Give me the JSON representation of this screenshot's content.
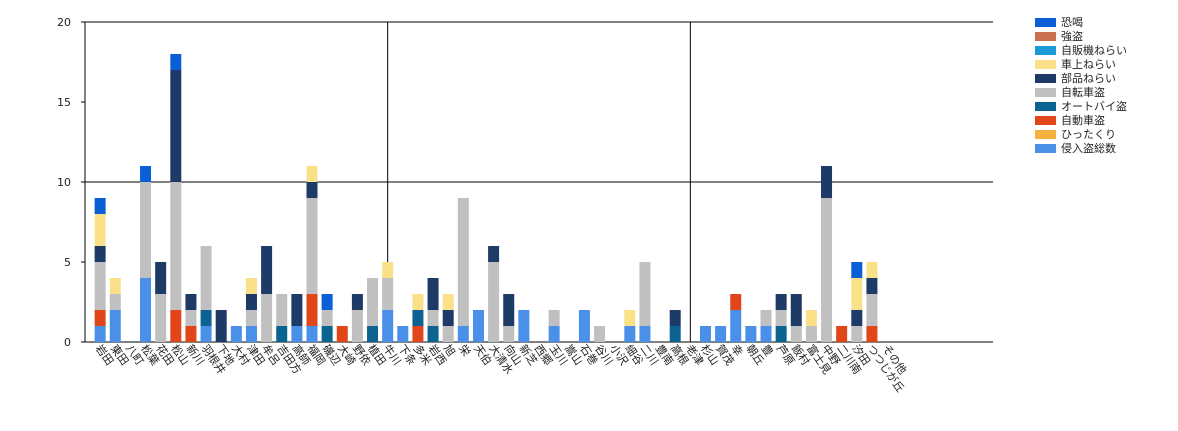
{
  "chart_data": {
    "type": "stacked_bar",
    "categories": [
      "岩田",
      "東田",
      "八町",
      "松葉",
      "花田",
      "松山",
      "新川",
      "羽根井",
      "下地",
      "大村",
      "津田",
      "牟呂",
      "吉田方",
      "高師",
      "福岡",
      "磯辺",
      "大崎",
      "野依",
      "植田",
      "牛川",
      "下条",
      "多米",
      "岩西",
      "旭",
      "栄",
      "天伯",
      "大清水",
      "向山",
      "新芝",
      "西郷",
      "玉川",
      "嵩山",
      "石巻",
      "谷川",
      "小沢",
      "細谷",
      "二川",
      "豊南",
      "高根",
      "老津",
      "杉山",
      "賀茂",
      "幸",
      "朝丘",
      "豊",
      "芦原",
      "飯村",
      "富士見",
      "中野",
      "二川南",
      "汐田",
      "つつじが丘",
      "その他"
    ],
    "series": [
      {
        "name": "恐喝",
        "color": "#0a5fd6",
        "values": [
          1,
          0,
          0,
          1,
          0,
          1,
          0,
          0,
          0,
          0,
          0,
          0,
          0,
          0,
          0,
          1,
          0,
          0,
          0,
          0,
          0,
          0,
          0,
          0,
          0,
          0,
          0,
          0,
          0,
          0,
          0,
          0,
          0,
          0,
          0,
          0,
          0,
          0,
          0,
          0,
          0,
          0,
          0,
          0,
          0,
          0,
          0,
          0,
          0,
          0,
          1,
          0,
          0
        ]
      },
      {
        "name": "強盗",
        "color": "#c8704f",
        "values": [
          0,
          0,
          0,
          0,
          0,
          0,
          0,
          0,
          0,
          0,
          0,
          0,
          0,
          0,
          0,
          0,
          0,
          0,
          0,
          0,
          0,
          0,
          0,
          0,
          0,
          0,
          0,
          0,
          0,
          0,
          0,
          0,
          0,
          0,
          0,
          0,
          0,
          0,
          0,
          0,
          0,
          0,
          0,
          0,
          0,
          0,
          0,
          0,
          0,
          0,
          0,
          0,
          0
        ]
      },
      {
        "name": "自販機ねらい",
        "color": "#1a9ad6",
        "values": [
          0,
          0,
          0,
          0,
          0,
          0,
          0,
          0,
          0,
          0,
          0,
          0,
          0,
          0,
          0,
          0,
          0,
          0,
          0,
          0,
          0,
          0,
          0,
          0,
          0,
          0,
          0,
          0,
          0,
          0,
          0,
          0,
          0,
          0,
          0,
          0,
          0,
          0,
          0,
          0,
          0,
          0,
          0,
          0,
          0,
          0,
          0,
          0,
          0,
          0,
          0,
          0,
          0
        ]
      },
      {
        "name": "車上ねらい",
        "color": "#fbe08a",
        "values": [
          2,
          1,
          0,
          0,
          0,
          0,
          0,
          0,
          0,
          0,
          1,
          0,
          0,
          0,
          1,
          0,
          0,
          0,
          0,
          1,
          0,
          1,
          0,
          1,
          0,
          0,
          0,
          0,
          0,
          0,
          0,
          0,
          0,
          0,
          0,
          1,
          0,
          0,
          0,
          0,
          0,
          0,
          0,
          0,
          0,
          0,
          0,
          1,
          0,
          0,
          2,
          1,
          0
        ]
      },
      {
        "name": "部品ねらい",
        "color": "#1e3a66",
        "values": [
          1,
          0,
          0,
          0,
          2,
          7,
          1,
          0,
          2,
          0,
          1,
          3,
          0,
          2,
          1,
          0,
          0,
          1,
          0,
          0,
          0,
          0,
          2,
          1,
          0,
          0,
          1,
          2,
          0,
          0,
          0,
          0,
          0,
          0,
          0,
          0,
          0,
          0,
          1,
          0,
          0,
          0,
          0,
          0,
          0,
          1,
          2,
          0,
          2,
          0,
          1,
          1,
          0
        ]
      },
      {
        "name": "自転車盗",
        "color": "#c0c0c0",
        "values": [
          3,
          1,
          0,
          6,
          3,
          8,
          1,
          4,
          0,
          0,
          1,
          3,
          2,
          0,
          6,
          1,
          0,
          2,
          3,
          2,
          0,
          0,
          1,
          1,
          8,
          0,
          5,
          1,
          0,
          0,
          1,
          0,
          0,
          1,
          0,
          0,
          4,
          0,
          0,
          0,
          0,
          0,
          0,
          0,
          1,
          1,
          1,
          1,
          9,
          0,
          1,
          2,
          0
        ]
      },
      {
        "name": "オートバイ盗",
        "color": "#0b6391",
        "values": [
          0,
          0,
          0,
          0,
          0,
          0,
          0,
          1,
          0,
          0,
          0,
          0,
          1,
          0,
          0,
          1,
          0,
          0,
          1,
          0,
          0,
          1,
          1,
          0,
          0,
          0,
          0,
          0,
          0,
          0,
          0,
          0,
          0,
          0,
          0,
          0,
          0,
          0,
          1,
          0,
          0,
          0,
          0,
          0,
          0,
          1,
          0,
          0,
          0,
          0,
          0,
          0,
          0
        ]
      },
      {
        "name": "自動車盗",
        "color": "#e0461a",
        "values": [
          1,
          0,
          0,
          0,
          0,
          2,
          1,
          0,
          0,
          0,
          0,
          0,
          0,
          0,
          2,
          0,
          1,
          0,
          0,
          0,
          0,
          1,
          0,
          0,
          0,
          0,
          0,
          0,
          0,
          0,
          0,
          0,
          0,
          0,
          0,
          0,
          0,
          0,
          0,
          0,
          0,
          0,
          1,
          0,
          0,
          0,
          0,
          0,
          0,
          1,
          0,
          1,
          0
        ]
      },
      {
        "name": "ひったくり",
        "color": "#f5b13d",
        "values": [
          0,
          0,
          0,
          0,
          0,
          0,
          0,
          0,
          0,
          0,
          0,
          0,
          0,
          0,
          0,
          0,
          0,
          0,
          0,
          0,
          0,
          0,
          0,
          0,
          0,
          0,
          0,
          0,
          0,
          0,
          0,
          0,
          0,
          0,
          0,
          0,
          0,
          0,
          0,
          0,
          0,
          0,
          0,
          0,
          0,
          0,
          0,
          0,
          0,
          0,
          0,
          0,
          0
        ]
      },
      {
        "name": "侵入盗総数",
        "color": "#4a8fe8",
        "values": [
          1,
          2,
          0,
          4,
          0,
          0,
          0,
          1,
          0,
          1,
          1,
          0,
          0,
          1,
          1,
          0,
          0,
          0,
          0,
          2,
          1,
          0,
          0,
          0,
          1,
          2,
          0,
          0,
          2,
          0,
          1,
          0,
          2,
          0,
          0,
          1,
          1,
          0,
          0,
          0,
          1,
          1,
          2,
          1,
          1,
          0,
          0,
          0,
          0,
          0,
          0,
          0,
          0
        ]
      }
    ],
    "ylim": [
      0,
      20
    ],
    "yticks": [
      0,
      5,
      10,
      15,
      20
    ],
    "grid_y": [
      10,
      20
    ],
    "legend": "right"
  }
}
